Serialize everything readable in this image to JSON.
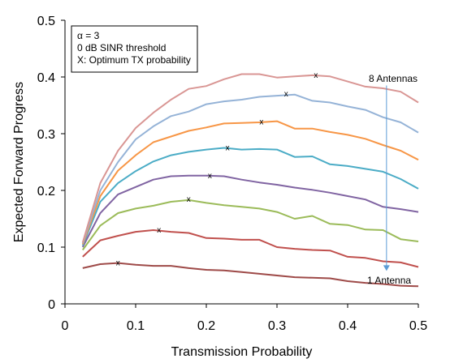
{
  "chart_data": {
    "type": "line",
    "xlabel": "Transmission Probability",
    "ylabel": "Expected Forward Progress",
    "xlim": [
      0,
      0.5
    ],
    "ylim": [
      0,
      0.5
    ],
    "x_ticks": [
      0,
      0.1,
      0.2,
      0.3,
      0.4,
      0.5
    ],
    "x_tick_labels": [
      "0",
      "0.1",
      "0.2",
      "0.3",
      "0.4",
      "0.5"
    ],
    "y_ticks": [
      0,
      0.1,
      0.2,
      0.3,
      0.4,
      0.5
    ],
    "y_tick_labels": [
      "0",
      "0.1",
      "0.2",
      "0.3",
      "0.4",
      "0.5"
    ],
    "grid": false,
    "legend_box": [
      "α = 3",
      "0 dB SINR threshold",
      "X: Optimum TX probability"
    ],
    "annotations": {
      "top_label": "8 Antennas",
      "bottom_label": "1 Antenna",
      "arrow": {
        "from": [
          0.455,
          0.385
        ],
        "to": [
          0.455,
          0.058
        ],
        "color": "#5b9bd5"
      }
    },
    "x": [
      0.025,
      0.05,
      0.075,
      0.1,
      0.125,
      0.15,
      0.175,
      0.2,
      0.225,
      0.25,
      0.275,
      0.3,
      0.325,
      0.35,
      0.375,
      0.4,
      0.425,
      0.45,
      0.475,
      0.5
    ],
    "series": [
      {
        "color": "#9e4a48",
        "values": [
          0.063,
          0.07,
          0.072,
          0.069,
          0.067,
          0.067,
          0.063,
          0.06,
          0.059,
          0.056,
          0.053,
          0.05,
          0.047,
          0.046,
          0.045,
          0.04,
          0.037,
          0.035,
          0.032,
          0.031
        ],
        "optimum": [
          0.075,
          0.072
        ]
      },
      {
        "color": "#c0504d",
        "values": [
          0.083,
          0.112,
          0.12,
          0.127,
          0.13,
          0.127,
          0.125,
          0.116,
          0.115,
          0.113,
          0.113,
          0.1,
          0.097,
          0.095,
          0.094,
          0.083,
          0.081,
          0.075,
          0.073,
          0.065
        ],
        "optimum": [
          0.133,
          0.13
        ]
      },
      {
        "color": "#9bbb59",
        "values": [
          0.095,
          0.138,
          0.16,
          0.168,
          0.173,
          0.18,
          0.183,
          0.178,
          0.174,
          0.171,
          0.168,
          0.162,
          0.15,
          0.155,
          0.141,
          0.139,
          0.131,
          0.13,
          0.114,
          0.11
        ],
        "optimum": [
          0.175,
          0.184
        ]
      },
      {
        "color": "#8064a2",
        "values": [
          0.1,
          0.16,
          0.193,
          0.206,
          0.219,
          0.225,
          0.226,
          0.226,
          0.225,
          0.219,
          0.214,
          0.21,
          0.205,
          0.201,
          0.196,
          0.19,
          0.184,
          0.171,
          0.167,
          0.162
        ],
        "optimum": [
          0.205,
          0.226
        ]
      },
      {
        "color": "#4bacc6",
        "values": [
          0.103,
          0.18,
          0.213,
          0.234,
          0.251,
          0.262,
          0.268,
          0.272,
          0.275,
          0.272,
          0.273,
          0.272,
          0.259,
          0.26,
          0.246,
          0.243,
          0.238,
          0.233,
          0.22,
          0.203
        ],
        "optimum": [
          0.23,
          0.275
        ]
      },
      {
        "color": "#f79646",
        "values": [
          0.105,
          0.19,
          0.235,
          0.262,
          0.285,
          0.295,
          0.305,
          0.311,
          0.318,
          0.319,
          0.32,
          0.322,
          0.309,
          0.309,
          0.303,
          0.298,
          0.291,
          0.28,
          0.27,
          0.254
        ],
        "optimum": [
          0.278,
          0.321
        ]
      },
      {
        "color": "#95b3d7",
        "values": [
          0.107,
          0.2,
          0.25,
          0.29,
          0.313,
          0.331,
          0.339,
          0.352,
          0.357,
          0.36,
          0.365,
          0.367,
          0.369,
          0.358,
          0.355,
          0.348,
          0.342,
          0.329,
          0.32,
          0.302
        ],
        "optimum": [
          0.313,
          0.37
        ]
      },
      {
        "color": "#d99694",
        "values": [
          0.108,
          0.213,
          0.27,
          0.31,
          0.337,
          0.36,
          0.379,
          0.384,
          0.396,
          0.405,
          0.405,
          0.399,
          0.401,
          0.403,
          0.401,
          0.392,
          0.383,
          0.38,
          0.374,
          0.355
        ],
        "optimum": [
          0.355,
          0.403
        ]
      }
    ]
  }
}
